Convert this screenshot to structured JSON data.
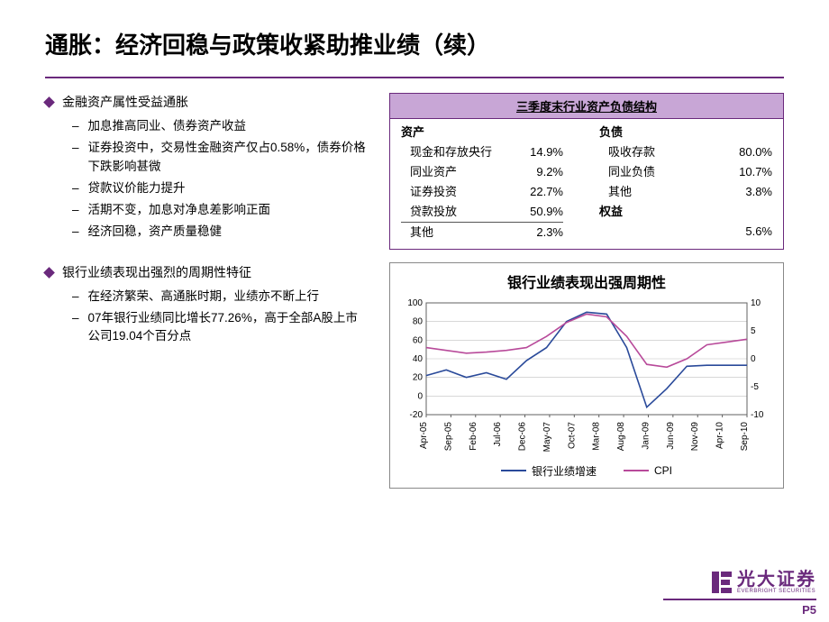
{
  "title": "通胀：经济回稳与政策收紧助推业绩（续）",
  "bullets": [
    {
      "main": "金融资产属性受益通胀",
      "subs": [
        "加息推高同业、债券资产收益",
        "证券投资中，交易性金融资产仅占0.58%，债券价格下跌影响甚微",
        "贷款议价能力提升",
        "活期不变，加息对净息差影响正面",
        "经济回稳，资产质量稳健"
      ]
    },
    {
      "main": "银行业绩表现出强烈的周期性特征",
      "subs": [
        "在经济繁荣、高通胀时期，业绩亦不断上行",
        "07年银行业绩同比增长77.26%，高于全部A股上市公司19.04个百分点"
      ]
    }
  ],
  "table": {
    "header": "三季度末行业资产负债结构",
    "assets_label": "资产",
    "liab_label": "负债",
    "equity_label": "权益",
    "rows": [
      {
        "a": "现金和存放央行",
        "av": "14.9%",
        "l": "吸收存款",
        "lv": "80.0%"
      },
      {
        "a": "同业资产",
        "av": "9.2%",
        "l": "同业负债",
        "lv": "10.7%"
      },
      {
        "a": "证券投资",
        "av": "22.7%",
        "l": "其他",
        "lv": "3.8%"
      },
      {
        "a": "贷款投放",
        "av": "50.9%",
        "l": "",
        "lv": ""
      },
      {
        "a": "其他",
        "av": "2.3%",
        "l": "",
        "lv": "5.6%"
      }
    ]
  },
  "chart": {
    "title": "银行业绩表现出强周期性",
    "type": "dual-axis-line",
    "series1_name": "银行业绩增速",
    "series2_name": "CPI",
    "series1_color": "#2a4a9a",
    "series2_color": "#b84a9a",
    "background_color": "#ffffff",
    "axis_color": "#606060",
    "grid_color": "#c0c0c0",
    "y1_min": -20,
    "y1_max": 100,
    "y1_step": 20,
    "y2_min": -10,
    "y2_max": 10,
    "y2_step": 5,
    "font_size_axis": 10,
    "x_labels": [
      "Apr-05",
      "Sep-05",
      "Feb-06",
      "Jul-06",
      "Dec-06",
      "May-07",
      "Oct-07",
      "Mar-08",
      "Aug-08",
      "Jan-09",
      "Jun-09",
      "Nov-09",
      "Apr-10",
      "Sep-10"
    ],
    "series1_data": [
      22,
      28,
      20,
      25,
      18,
      38,
      52,
      80,
      90,
      88,
      52,
      -12,
      8,
      32,
      33,
      33,
      33
    ],
    "series2_data": [
      2,
      1.5,
      1,
      1.2,
      1.5,
      2,
      4,
      6.5,
      8,
      7.5,
      4,
      -1,
      -1.5,
      0,
      2.5,
      3,
      3.5
    ],
    "x_count": 17
  },
  "footer": {
    "brand_cn": "光大证券",
    "brand_en": "EVERBRIGHT SECURITIES",
    "brand_color": "#6a297c",
    "page": "P5"
  }
}
